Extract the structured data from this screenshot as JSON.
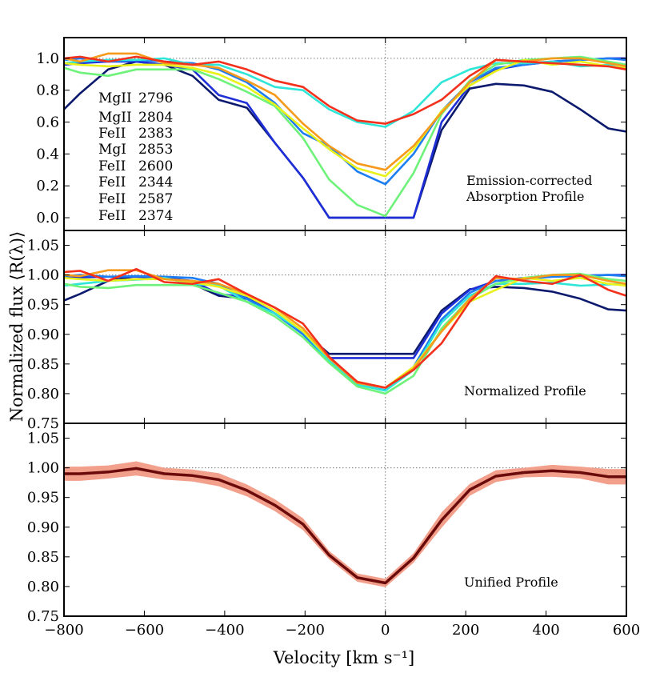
{
  "chart_data": [
    {
      "type": "line",
      "panel": "top",
      "annotation": [
        "Emission-corrected",
        "Absorption Profile"
      ],
      "ylim": [
        -0.08,
        1.13
      ],
      "yticks": [
        0.0,
        0.2,
        0.4,
        0.6,
        0.8,
        1.0
      ],
      "ytick_labels": [
        "0.0",
        "0.2",
        "0.4",
        "0.6",
        "0.8",
        "1.0"
      ],
      "reference_line_y": 1.0,
      "x": [
        -800,
        -760,
        -690,
        -620,
        -550,
        -480,
        -415,
        -345,
        -275,
        -205,
        -140,
        -70,
        0,
        70,
        140,
        210,
        275,
        345,
        415,
        485,
        555,
        600
      ],
      "series": [
        {
          "name": "MgII",
          "wave": "2796",
          "color": "#0c1a6e",
          "values": [
            0.68,
            0.78,
            0.93,
            0.98,
            0.96,
            0.89,
            0.74,
            0.69,
            0.47,
            0.25,
            0.0,
            0.0,
            0.0,
            0.0,
            0.55,
            0.81,
            0.84,
            0.83,
            0.79,
            0.68,
            0.56,
            0.54
          ]
        },
        {
          "name": "MgII",
          "wave": "2804",
          "color": "#1f2fd8",
          "values": [
            0.96,
            0.97,
            0.98,
            0.98,
            0.96,
            0.93,
            0.77,
            0.72,
            0.47,
            0.25,
            0.0,
            0.0,
            0.0,
            0.0,
            0.6,
            0.83,
            0.93,
            0.96,
            0.98,
            0.99,
            1.0,
            1.0
          ]
        },
        {
          "name": "FeII",
          "wave": "2383",
          "color": "#1c7ef2",
          "values": [
            0.99,
            1.0,
            0.98,
            0.99,
            0.98,
            0.97,
            0.93,
            0.85,
            0.72,
            0.53,
            0.45,
            0.29,
            0.21,
            0.4,
            0.67,
            0.85,
            0.94,
            0.96,
            0.98,
            0.99,
            1.0,
            0.99
          ]
        },
        {
          "name": "MgI",
          "wave": "2853",
          "color": "#2ee6d8",
          "values": [
            0.97,
            0.98,
            0.99,
            0.99,
            1.0,
            0.96,
            0.96,
            0.9,
            0.82,
            0.8,
            0.68,
            0.6,
            0.57,
            0.67,
            0.85,
            0.93,
            0.97,
            0.97,
            0.98,
            0.95,
            0.96,
            0.96
          ]
        },
        {
          "name": "FeII",
          "wave": "2600",
          "color": "#6ef27a",
          "values": [
            0.94,
            0.91,
            0.89,
            0.93,
            0.93,
            0.93,
            0.87,
            0.79,
            0.7,
            0.5,
            0.24,
            0.08,
            0.01,
            0.28,
            0.65,
            0.86,
            0.96,
            0.99,
            1.0,
            1.01,
            0.98,
            0.96
          ]
        },
        {
          "name": "FeII",
          "wave": "2344",
          "color": "#e8f21a",
          "values": [
            0.97,
            0.96,
            0.95,
            0.96,
            0.96,
            0.94,
            0.9,
            0.82,
            0.71,
            0.56,
            0.43,
            0.31,
            0.26,
            0.43,
            0.67,
            0.83,
            0.92,
            0.99,
            0.96,
            0.98,
            0.95,
            0.94
          ]
        },
        {
          "name": "FeII",
          "wave": "2587",
          "color": "#f59a1c",
          "values": [
            1.0,
            0.98,
            1.03,
            1.03,
            0.97,
            0.96,
            0.94,
            0.86,
            0.77,
            0.59,
            0.45,
            0.34,
            0.3,
            0.45,
            0.66,
            0.85,
            0.99,
            0.98,
            1.0,
            1.0,
            0.97,
            0.95
          ]
        },
        {
          "name": "FeII",
          "wave": "2374",
          "color": "#f2301c",
          "values": [
            1.0,
            1.01,
            0.98,
            1.01,
            0.98,
            0.96,
            0.98,
            0.93,
            0.86,
            0.82,
            0.7,
            0.61,
            0.59,
            0.65,
            0.74,
            0.89,
            0.99,
            0.98,
            0.97,
            0.96,
            0.95,
            0.93
          ]
        }
      ]
    },
    {
      "type": "line",
      "panel": "middle",
      "annotation": [
        "Normalized Profile"
      ],
      "ylim": [
        0.75,
        1.075
      ],
      "yticks": [
        0.75,
        0.8,
        0.85,
        0.9,
        0.95,
        1.0,
        1.05
      ],
      "ytick_labels": [
        "0.75",
        "0.80",
        "0.85",
        "0.90",
        "0.95",
        "1.00",
        "1.05"
      ],
      "reference_line_y": 1.0,
      "x": [
        -800,
        -760,
        -690,
        -620,
        -550,
        -480,
        -415,
        -345,
        -275,
        -205,
        -140,
        -70,
        0,
        70,
        140,
        210,
        275,
        345,
        415,
        485,
        555,
        600
      ],
      "series": [
        {
          "name": "MgII 2796",
          "color": "#0c1a6e",
          "values": [
            0.957,
            0.968,
            0.99,
            0.998,
            0.995,
            0.985,
            0.965,
            0.96,
            0.935,
            0.905,
            0.867,
            0.867,
            0.867,
            0.867,
            0.94,
            0.976,
            0.98,
            0.978,
            0.972,
            0.96,
            0.942,
            0.94
          ]
        },
        {
          "name": "MgII 2804",
          "color": "#1f2fd8",
          "values": [
            0.995,
            0.996,
            0.997,
            0.997,
            0.995,
            0.99,
            0.968,
            0.962,
            0.935,
            0.905,
            0.86,
            0.86,
            0.86,
            0.86,
            0.935,
            0.975,
            0.99,
            0.995,
            0.998,
            0.999,
            1.0,
            1.0
          ]
        },
        {
          "name": "FeII 2383",
          "color": "#1c7ef2",
          "values": [
            0.998,
            1.0,
            0.997,
            0.998,
            0.997,
            0.995,
            0.985,
            0.96,
            0.935,
            0.9,
            0.855,
            0.815,
            0.806,
            0.845,
            0.925,
            0.97,
            0.99,
            0.993,
            0.997,
            0.998,
            1.0,
            0.998
          ]
        },
        {
          "name": "MgI 2853",
          "color": "#2ee6d8",
          "values": [
            0.982,
            0.985,
            0.99,
            0.992,
            0.995,
            0.985,
            0.982,
            0.955,
            0.935,
            0.905,
            0.855,
            0.815,
            0.805,
            0.84,
            0.92,
            0.965,
            0.985,
            0.985,
            0.987,
            0.982,
            0.984,
            0.985
          ]
        },
        {
          "name": "FeII 2600",
          "color": "#6ef27a",
          "values": [
            0.985,
            0.98,
            0.978,
            0.983,
            0.983,
            0.983,
            0.97,
            0.955,
            0.93,
            0.895,
            0.852,
            0.812,
            0.8,
            0.83,
            0.91,
            0.96,
            0.985,
            0.995,
            1.0,
            1.002,
            0.993,
            0.99
          ]
        },
        {
          "name": "FeII 2344",
          "color": "#e8f21a",
          "values": [
            0.995,
            0.993,
            0.99,
            0.993,
            0.993,
            0.988,
            0.98,
            0.965,
            0.94,
            0.905,
            0.86,
            0.82,
            0.81,
            0.845,
            0.905,
            0.955,
            0.975,
            0.995,
            0.99,
            0.995,
            0.985,
            0.982
          ]
        },
        {
          "name": "FeII 2587",
          "color": "#f59a1c",
          "values": [
            1.0,
            0.998,
            1.008,
            1.008,
            0.993,
            0.99,
            0.985,
            0.968,
            0.945,
            0.91,
            0.86,
            0.818,
            0.81,
            0.842,
            0.905,
            0.96,
            0.995,
            0.993,
            1.0,
            1.0,
            0.99,
            0.985
          ]
        },
        {
          "name": "FeII 2374",
          "color": "#f2301c",
          "values": [
            1.005,
            1.007,
            0.99,
            1.01,
            0.988,
            0.985,
            0.993,
            0.968,
            0.945,
            0.918,
            0.862,
            0.82,
            0.81,
            0.84,
            0.885,
            0.955,
            0.998,
            0.99,
            0.985,
            1.0,
            0.975,
            0.965
          ]
        }
      ]
    },
    {
      "type": "line",
      "panel": "bottom",
      "annotation": [
        "Unified Profile"
      ],
      "ylim": [
        0.75,
        1.075
      ],
      "yticks": [
        0.75,
        0.8,
        0.85,
        0.9,
        0.95,
        1.0,
        1.05
      ],
      "ytick_labels": [
        "0.75",
        "0.80",
        "0.85",
        "0.90",
        "0.95",
        "1.00",
        "1.05"
      ],
      "reference_line_y": 1.0,
      "x": [
        -800,
        -760,
        -690,
        -620,
        -550,
        -480,
        -415,
        -345,
        -275,
        -205,
        -140,
        -70,
        0,
        70,
        140,
        210,
        275,
        345,
        415,
        485,
        555,
        600
      ],
      "series": [
        {
          "name": "Unified Profile",
          "color": "#6b0a0a",
          "band_color": "#f2a08c",
          "values": [
            0.99,
            0.99,
            0.993,
            0.999,
            0.99,
            0.987,
            0.98,
            0.962,
            0.937,
            0.905,
            0.853,
            0.815,
            0.806,
            0.848,
            0.912,
            0.963,
            0.986,
            0.992,
            0.995,
            0.992,
            0.985,
            0.985
          ],
          "band_halfwidth": [
            0.012,
            0.012,
            0.011,
            0.012,
            0.01,
            0.01,
            0.011,
            0.01,
            0.01,
            0.01,
            0.007,
            0.007,
            0.007,
            0.008,
            0.013,
            0.01,
            0.01,
            0.008,
            0.01,
            0.01,
            0.013,
            0.013
          ]
        }
      ],
      "xlim": [
        -800,
        600
      ],
      "xticks": [
        -800,
        -600,
        -400,
        -200,
        0,
        200,
        400,
        600
      ],
      "xtick_labels": [
        "−800",
        "−600",
        "−400",
        "−200",
        "0",
        "200",
        "400",
        "600"
      ],
      "xlabel": "Velocity [km s⁻¹]"
    }
  ],
  "ylabel": "Normalized flux ⟨R(λ)⟩",
  "legend": [
    {
      "ion": "MgII",
      "wave": "2796",
      "color": "#0c1a6e"
    },
    {
      "ion": "MgII",
      "wave": "2804",
      "color": "#1f2fd8"
    },
    {
      "ion": "FeII",
      "wave": "2383",
      "color": "#1c7ef2"
    },
    {
      "ion": "MgI",
      "wave": "2853",
      "color": "#2ee6d8"
    },
    {
      "ion": "FeII",
      "wave": "2600",
      "color": "#6ef27a"
    },
    {
      "ion": "FeII",
      "wave": "2344",
      "color": "#e8f21a"
    },
    {
      "ion": "FeII",
      "wave": "2587",
      "color": "#f59a1c"
    },
    {
      "ion": "FeII",
      "wave": "2374",
      "color": "#f2301c"
    }
  ]
}
